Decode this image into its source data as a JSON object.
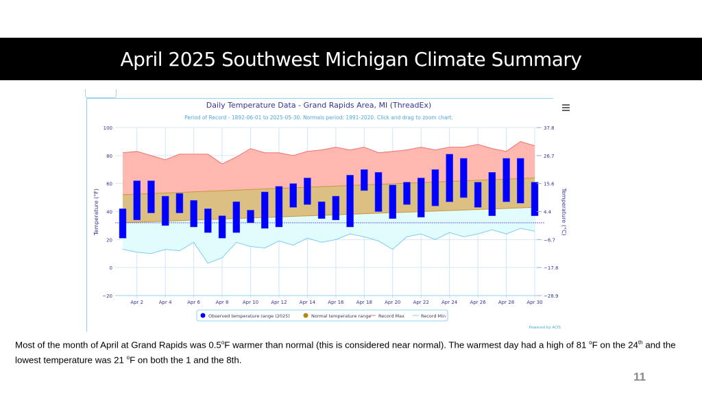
{
  "slide": {
    "title": "April 2025 Southwest Michigan Climate Summary",
    "page_number": "11",
    "body": {
      "t1": "Most of the month of April at Grand Rapids was 0.5",
      "deg1": "o",
      "t2": "F warmer than normal (this is considered near normal).  The warmest day had a high of 81 ",
      "deg2": "o",
      "t3": "F on the 24",
      "th1": "th",
      "t4": " and the lowest temperature was 21 ",
      "deg3": "o",
      "t5": "F on both the 1 and the 8th."
    }
  },
  "chart_data": {
    "type": "bar",
    "title": "Daily Temperature Data - Grand Rapids Area, MI (ThreadEx)",
    "subtitle": "Period of Record - 1892-06-01 to 2025-05-30. Normals period: 1991-2020. Click and drag to zoom chart.",
    "ylabel": "Temperature (°F)",
    "y2label": "Temperature (°C)",
    "ylim": [
      -20,
      100
    ],
    "yticks": [
      "100",
      "80",
      "60",
      "40",
      "20",
      "0",
      "−20"
    ],
    "y2ticks": [
      "37.8",
      "26.7",
      "15.6",
      "4.4",
      "−6.7",
      "−17.8",
      "−28.9"
    ],
    "xticks": [
      "Apr 2",
      "Apr 4",
      "Apr 6",
      "Apr 8",
      "Apr 10",
      "Apr 12",
      "Apr 14",
      "Apr 16",
      "Apr 18",
      "Apr 20",
      "Apr 22",
      "Apr 24",
      "Apr 26",
      "Apr 28",
      "Apr 30"
    ],
    "days": [
      1,
      2,
      3,
      4,
      5,
      6,
      7,
      8,
      9,
      10,
      11,
      12,
      13,
      14,
      15,
      16,
      17,
      18,
      19,
      20,
      21,
      22,
      23,
      24,
      25,
      26,
      27,
      28,
      29,
      30
    ],
    "freezing_line": 32,
    "grid": true,
    "legend_position": "bottom",
    "series": [
      {
        "name": "Observed temperature range (2025)",
        "color": "#0000ff",
        "low": [
          21,
          34,
          39,
          30,
          39,
          29,
          25,
          21,
          25,
          32,
          28,
          29,
          43,
          45,
          35,
          34,
          29,
          55,
          40,
          35,
          45,
          36,
          44,
          47,
          50,
          43,
          37,
          47,
          46,
          37
        ],
        "high": [
          42,
          62,
          62,
          51,
          53,
          48,
          42,
          37,
          47,
          41,
          54,
          58,
          60,
          64,
          47,
          51,
          66,
          70,
          68,
          59,
          61,
          64,
          70,
          81,
          78,
          61,
          68,
          78,
          78,
          61
        ]
      },
      {
        "name": "Normal temperature range",
        "color": "#b8860b",
        "low_start": 32,
        "low_end": 43,
        "high_start": 52,
        "high_end": 64
      },
      {
        "name": "Record Max",
        "color": "#f07070",
        "values": [
          82,
          83,
          80,
          77,
          81,
          81,
          81,
          74,
          79,
          85,
          82,
          82,
          80,
          83,
          84,
          86,
          84,
          86,
          82,
          83,
          84,
          86,
          84,
          86,
          86,
          88,
          85,
          83,
          90,
          87
        ]
      },
      {
        "name": "Record Min",
        "color": "#80ccf0",
        "values": [
          13,
          11,
          10,
          13,
          12,
          18,
          3,
          7,
          18,
          15,
          14,
          19,
          16,
          21,
          18,
          20,
          24,
          22,
          19,
          13,
          22,
          24,
          20,
          25,
          22,
          24,
          27,
          24,
          28,
          26
        ]
      }
    ],
    "credit": "Powered by ACIS"
  }
}
